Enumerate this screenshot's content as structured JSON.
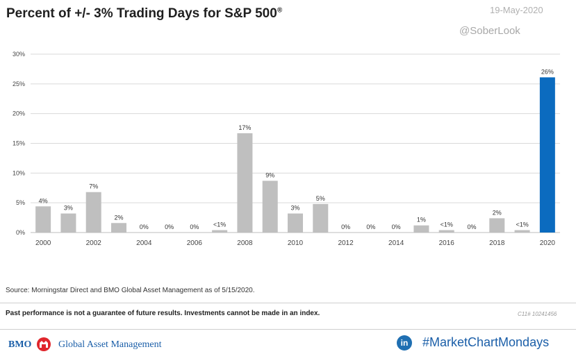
{
  "header": {
    "title": "Percent of +/- 3% Trading Days for S&P 500",
    "title_mark": "®",
    "date": "19-May-2020",
    "handle": "@SoberLook"
  },
  "chart_data": {
    "type": "bar",
    "title": "Percent of +/- 3% Trading Days for S&P 500",
    "xlabel": "",
    "ylabel": "",
    "ylim": [
      0,
      30
    ],
    "yticks": [
      "0%",
      "5%",
      "10%",
      "15%",
      "20%",
      "25%",
      "30%"
    ],
    "grid": true,
    "categories": [
      "2000",
      "2001",
      "2002",
      "2003",
      "2004",
      "2005",
      "2006",
      "2007",
      "2008",
      "2009",
      "2010",
      "2011",
      "2012",
      "2013",
      "2014",
      "2015",
      "2016",
      "2017",
      "2018",
      "2019",
      "2020"
    ],
    "xtick_labels": [
      "2000",
      "",
      "2002",
      "",
      "2004",
      "",
      "2006",
      "",
      "2008",
      "",
      "2010",
      "",
      "2012",
      "",
      "2014",
      "",
      "2016",
      "",
      "2018",
      "",
      "2020"
    ],
    "values": [
      4.4,
      3.2,
      6.8,
      1.6,
      0,
      0,
      0,
      0.4,
      16.7,
      8.7,
      3.2,
      4.8,
      0,
      0,
      0,
      1.2,
      0.4,
      0,
      2.4,
      0.4,
      26.1
    ],
    "data_labels": [
      "4%",
      "3%",
      "7%",
      "2%",
      "0%",
      "0%",
      "0%",
      "<1%",
      "17%",
      "9%",
      "3%",
      "5%",
      "0%",
      "0%",
      "0%",
      "1%",
      "<1%",
      "0%",
      "2%",
      "<1%",
      "26%"
    ],
    "colors": {
      "default": "#bfbfbf",
      "highlight": "#0b6bbf",
      "highlight_index": 20
    }
  },
  "source": "Source: Morningstar Direct and BMO Global Asset Management as of 5/15/2020.",
  "disclaimer": "Past performance is not a guarantee of future results. Investments cannot be made in an index.",
  "code": "C11# 10241456",
  "footer": {
    "brand": "BMO",
    "brand_mark": "®",
    "company": "Global Asset Management",
    "social_icon": "linkedin-icon",
    "social_icon_text": "in",
    "hashtag": "#MarketChartMondays",
    "brand_color": "#1a5ea8",
    "logo_color": "#e0262c"
  }
}
